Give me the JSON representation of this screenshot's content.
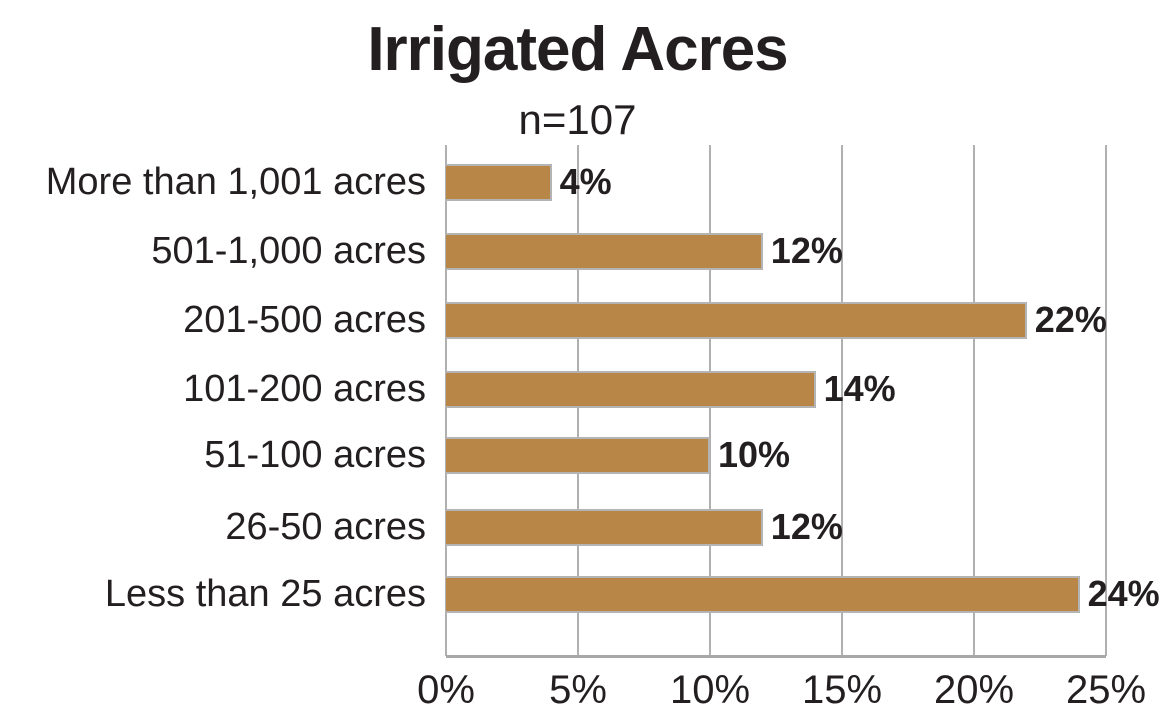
{
  "chart_data": {
    "type": "bar",
    "orientation": "horizontal",
    "title": "Irrigated Acres",
    "subtitle": "n=107",
    "categories": [
      "More than 1,001 acres",
      "501-1,000 acres",
      "201-500 acres",
      "101-200 acres",
      "51-100 acres",
      "26-50 acres",
      "Less than 25 acres"
    ],
    "values": [
      4,
      12,
      22,
      14,
      10,
      12,
      24
    ],
    "value_labels": [
      "4%",
      "12%",
      "22%",
      "14%",
      "10%",
      "12%",
      "24%"
    ],
    "xlabel": "",
    "ylabel": "",
    "xlim": [
      0,
      25
    ],
    "x_ticks": [
      "0%",
      "5%",
      "10%",
      "15%",
      "20%",
      "25%"
    ],
    "grid": true,
    "legend": null,
    "bar_color": "#b88646"
  }
}
